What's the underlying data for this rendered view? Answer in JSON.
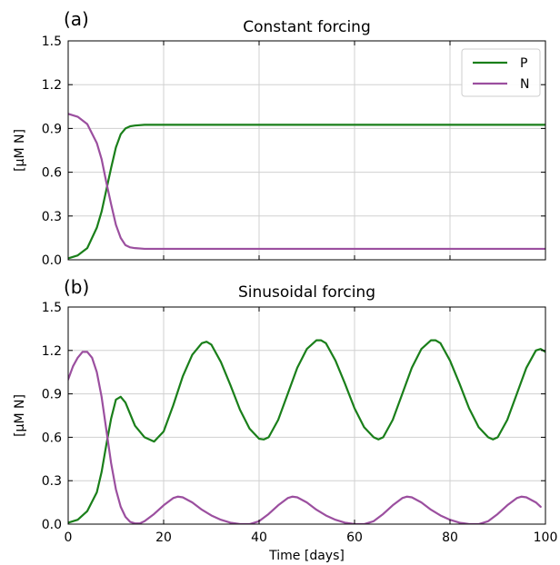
{
  "chart_data": [
    {
      "type": "line",
      "panel_label": "(a)",
      "title": "Constant forcing",
      "xlabel": "",
      "ylabel": "[µM N]",
      "xlim": [
        0,
        100
      ],
      "ylim": [
        0,
        1.5
      ],
      "xticks": [
        0,
        20,
        40,
        60,
        80,
        100
      ],
      "yticks": [
        "0.0",
        "0.3",
        "0.6",
        "0.9",
        "1.2",
        "1.5"
      ],
      "show_xtick_labels": false,
      "grid": true,
      "legend": "top-right",
      "series": [
        {
          "name": "P",
          "color": "#1a7f1a",
          "x": [
            0,
            2,
            4,
            6,
            7,
            8,
            9,
            10,
            11,
            12,
            13,
            14,
            16,
            20,
            30,
            40,
            60,
            80,
            100
          ],
          "y": [
            0.01,
            0.03,
            0.08,
            0.22,
            0.33,
            0.48,
            0.63,
            0.77,
            0.86,
            0.9,
            0.915,
            0.92,
            0.925,
            0.925,
            0.925,
            0.925,
            0.925,
            0.925,
            0.925
          ]
        },
        {
          "name": "N",
          "color": "#9b4f9f",
          "x": [
            0,
            2,
            4,
            6,
            7,
            8,
            9,
            10,
            11,
            12,
            13,
            14,
            16,
            20,
            30,
            40,
            60,
            80,
            100
          ],
          "y": [
            1.0,
            0.98,
            0.93,
            0.8,
            0.69,
            0.53,
            0.38,
            0.24,
            0.15,
            0.1,
            0.085,
            0.08,
            0.075,
            0.075,
            0.075,
            0.075,
            0.075,
            0.075,
            0.075
          ]
        }
      ]
    },
    {
      "type": "line",
      "panel_label": "(b)",
      "title": "Sinusoidal forcing",
      "xlabel": "Time [days]",
      "ylabel": "[µM N]",
      "xlim": [
        0,
        100
      ],
      "ylim": [
        0,
        1.5
      ],
      "xticks": [
        0,
        20,
        40,
        60,
        80,
        100
      ],
      "yticks": [
        "0.0",
        "0.3",
        "0.6",
        "0.9",
        "1.2",
        "1.5"
      ],
      "show_xtick_labels": true,
      "grid": true,
      "series": [
        {
          "name": "P",
          "color": "#1a7f1a",
          "x": [
            0,
            2,
            4,
            6,
            7,
            8,
            9,
            10,
            11,
            12,
            13,
            14,
            16,
            18,
            20,
            22,
            24,
            26,
            28,
            29,
            30,
            32,
            34,
            36,
            38,
            40,
            41,
            42,
            44,
            46,
            48,
            50,
            52,
            53,
            54,
            56,
            58,
            60,
            62,
            64,
            65,
            66,
            68,
            70,
            72,
            74,
            76,
            77,
            78,
            80,
            82,
            84,
            86,
            88,
            89,
            90,
            92,
            94,
            96,
            98,
            99,
            100
          ],
          "y": [
            0.01,
            0.03,
            0.09,
            0.22,
            0.36,
            0.55,
            0.73,
            0.86,
            0.88,
            0.84,
            0.76,
            0.68,
            0.6,
            0.57,
            0.64,
            0.82,
            1.02,
            1.17,
            1.25,
            1.26,
            1.24,
            1.12,
            0.96,
            0.79,
            0.66,
            0.59,
            0.585,
            0.6,
            0.72,
            0.9,
            1.08,
            1.21,
            1.27,
            1.27,
            1.25,
            1.13,
            0.97,
            0.8,
            0.67,
            0.6,
            0.585,
            0.6,
            0.72,
            0.9,
            1.08,
            1.21,
            1.27,
            1.27,
            1.25,
            1.13,
            0.97,
            0.8,
            0.67,
            0.6,
            0.585,
            0.6,
            0.72,
            0.9,
            1.08,
            1.2,
            1.21,
            1.19
          ]
        },
        {
          "name": "N",
          "color": "#9b4f9f",
          "x": [
            0,
            1,
            2,
            3,
            4,
            5,
            6,
            7,
            8,
            9,
            10,
            11,
            12,
            13,
            14,
            15,
            16,
            18,
            20,
            22,
            23,
            24,
            26,
            28,
            30,
            32,
            34,
            36,
            38,
            40,
            42,
            44,
            46,
            47,
            48,
            50,
            52,
            54,
            56,
            58,
            60,
            62,
            64,
            66,
            68,
            70,
            71,
            72,
            74,
            76,
            78,
            80,
            82,
            84,
            86,
            88,
            90,
            92,
            94,
            95,
            96,
            98,
            99
          ],
          "y": [
            1.0,
            1.09,
            1.15,
            1.19,
            1.19,
            1.15,
            1.05,
            0.88,
            0.65,
            0.42,
            0.24,
            0.12,
            0.05,
            0.015,
            0.005,
            0.005,
            0.02,
            0.07,
            0.13,
            0.18,
            0.19,
            0.185,
            0.15,
            0.1,
            0.06,
            0.03,
            0.01,
            0.0,
            0.0,
            0.02,
            0.07,
            0.13,
            0.18,
            0.19,
            0.185,
            0.15,
            0.1,
            0.06,
            0.03,
            0.01,
            0.0,
            0.0,
            0.02,
            0.07,
            0.13,
            0.18,
            0.19,
            0.185,
            0.15,
            0.1,
            0.06,
            0.03,
            0.01,
            0.0,
            0.0,
            0.02,
            0.07,
            0.13,
            0.18,
            0.19,
            0.185,
            0.15,
            0.12
          ]
        }
      ]
    }
  ]
}
